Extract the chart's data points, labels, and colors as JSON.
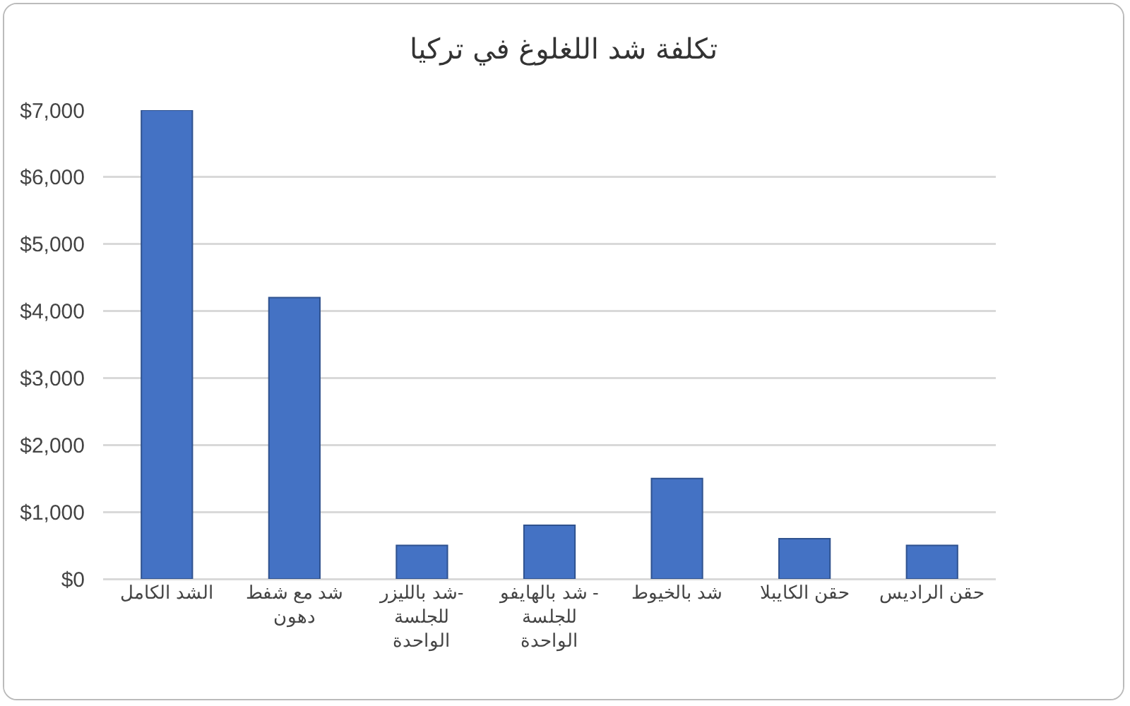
{
  "chart_data": {
    "type": "bar",
    "title": "تكلفة شد اللغلوغ في تركيا",
    "categories": [
      "الشد الكامل",
      "شد مع شفط دهون",
      "شد بالليزر- للجلسة الواحدة",
      "شد بالهايفو - للجلسة الواحدة",
      "شد بالخيوط",
      "حقن الكايبلا",
      "حقن الراديس"
    ],
    "values": [
      7000,
      4200,
      500,
      800,
      1500,
      600,
      500
    ],
    "color": "#4472c4",
    "ylim": [
      0,
      7000
    ],
    "yticks": [
      {
        "value": 0,
        "label": "$0"
      },
      {
        "value": 1000,
        "label": "$1,000"
      },
      {
        "value": 2000,
        "label": "$2,000"
      },
      {
        "value": 3000,
        "label": "$3,000"
      },
      {
        "value": 4000,
        "label": "$4,000"
      },
      {
        "value": 5000,
        "label": "$5,000"
      },
      {
        "value": 6000,
        "label": "$6,000"
      },
      {
        "value": 7000,
        "label": "$7,000"
      }
    ],
    "grid": true
  }
}
